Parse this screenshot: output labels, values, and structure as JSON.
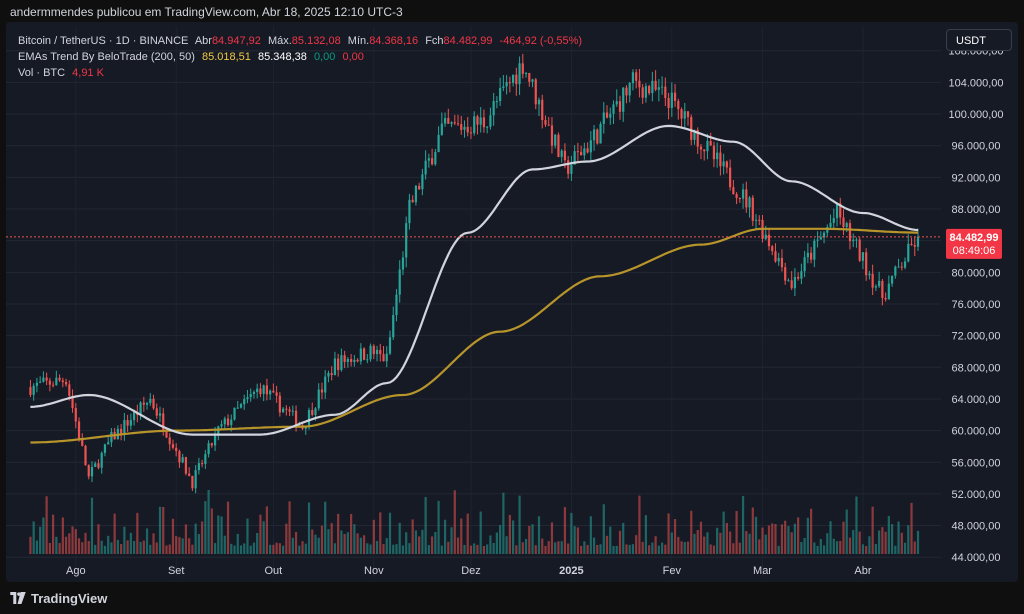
{
  "header": {
    "credit": "andermmendes publicou em TradingView.com, Abr 18, 2025 12:10 UTC-3"
  },
  "legend": {
    "symbol": "Bitcoin / TetherUS · 1D · BINANCE",
    "open_label": "Abr",
    "open_value": "84.947,92",
    "high_label": "Máx.",
    "high_value": "85.132,08",
    "low_label": "Mín.",
    "low_value": "84.368,16",
    "close_label": "Fch",
    "close_value": "84.482,99",
    "change": "-464,92 (-0,55%)",
    "ema_name": "EMAs Trend By BeloTrade (200, 50)",
    "ema_200": "85.018,51",
    "ema_50": "85.348,38",
    "ema_v1": "0,00",
    "ema_v2": "0,00",
    "vol_name": "Vol · BTC",
    "vol_value": "4,91 K"
  },
  "toolbar": {
    "currency": "USDT"
  },
  "price_tag": {
    "price": "84.482,99",
    "countdown": "08:49:06"
  },
  "footer": {
    "brand": "TradingView"
  },
  "colors": {
    "up": "#26a69a",
    "down": "#ef5350",
    "ema50": "#d1d4dc",
    "ema200": "#b8952a",
    "background": "#161a25"
  },
  "chart_data": {
    "type": "candlestick",
    "symbol": "BTCUSDT",
    "timeframe": "1D",
    "x_tick_labels": [
      "Ago",
      "Set",
      "Out",
      "Nov",
      "Dez",
      "2025",
      "Fev",
      "Mar",
      "Abr"
    ],
    "y_tick_labels": [
      "44.000,00",
      "48.000,00",
      "52.000,00",
      "56.000,00",
      "60.000,00",
      "64.000,00",
      "68.000,00",
      "72.000,00",
      "76.000,00",
      "80.000,00",
      "84.000,00",
      "88.000,00",
      "92.000,00",
      "96.000,00",
      "100.000,00",
      "104.000,00",
      "108.000,00"
    ],
    "y_ticks": [
      44000,
      48000,
      52000,
      56000,
      60000,
      64000,
      68000,
      72000,
      76000,
      80000,
      84000,
      88000,
      92000,
      96000,
      100000,
      104000,
      108000
    ],
    "ylim": [
      41500,
      111000
    ],
    "last_price": 84482.99,
    "approx_close_path": {
      "x": [
        "2024-07-18",
        "2024-07-29",
        "2024-08-05",
        "2024-08-12",
        "2024-08-24",
        "2024-09-06",
        "2024-09-14",
        "2024-09-27",
        "2024-10-10",
        "2024-10-20",
        "2024-10-31",
        "2024-11-05",
        "2024-11-12",
        "2024-11-22",
        "2024-12-05",
        "2024-12-17",
        "2024-12-30",
        "2025-01-07",
        "2025-01-20",
        "2025-01-31",
        "2025-02-10",
        "2025-02-25",
        "2025-03-10",
        "2025-03-24",
        "2025-04-07",
        "2025-04-18"
      ],
      "close": [
        65500,
        66500,
        54000,
        59000,
        64000,
        53500,
        60000,
        65500,
        60500,
        68500,
        70000,
        69000,
        88000,
        98000,
        99000,
        106500,
        93000,
        96500,
        104000,
        102000,
        96500,
        88500,
        78500,
        87500,
        77000,
        84480
      ]
    },
    "ema50_path": {
      "x": [
        "2024-07-18",
        "2024-08-05",
        "2024-09-06",
        "2024-09-27",
        "2024-10-20",
        "2024-11-05",
        "2024-11-30",
        "2024-12-20",
        "2025-01-06",
        "2025-01-31",
        "2025-02-20",
        "2025-03-10",
        "2025-04-01",
        "2025-04-18"
      ],
      "value": [
        63000,
        64500,
        59500,
        59500,
        62000,
        66000,
        85000,
        93000,
        94000,
        98500,
        96500,
        91500,
        87500,
        85350
      ]
    },
    "ema200_path": {
      "x": [
        "2024-07-18",
        "2024-09-01",
        "2024-10-10",
        "2024-11-10",
        "2024-12-10",
        "2025-01-10",
        "2025-02-10",
        "2025-03-01",
        "2025-03-20",
        "2025-04-18"
      ],
      "value": [
        58500,
        60000,
        60500,
        64500,
        72500,
        79500,
        83500,
        85500,
        85500,
        85020
      ]
    }
  }
}
